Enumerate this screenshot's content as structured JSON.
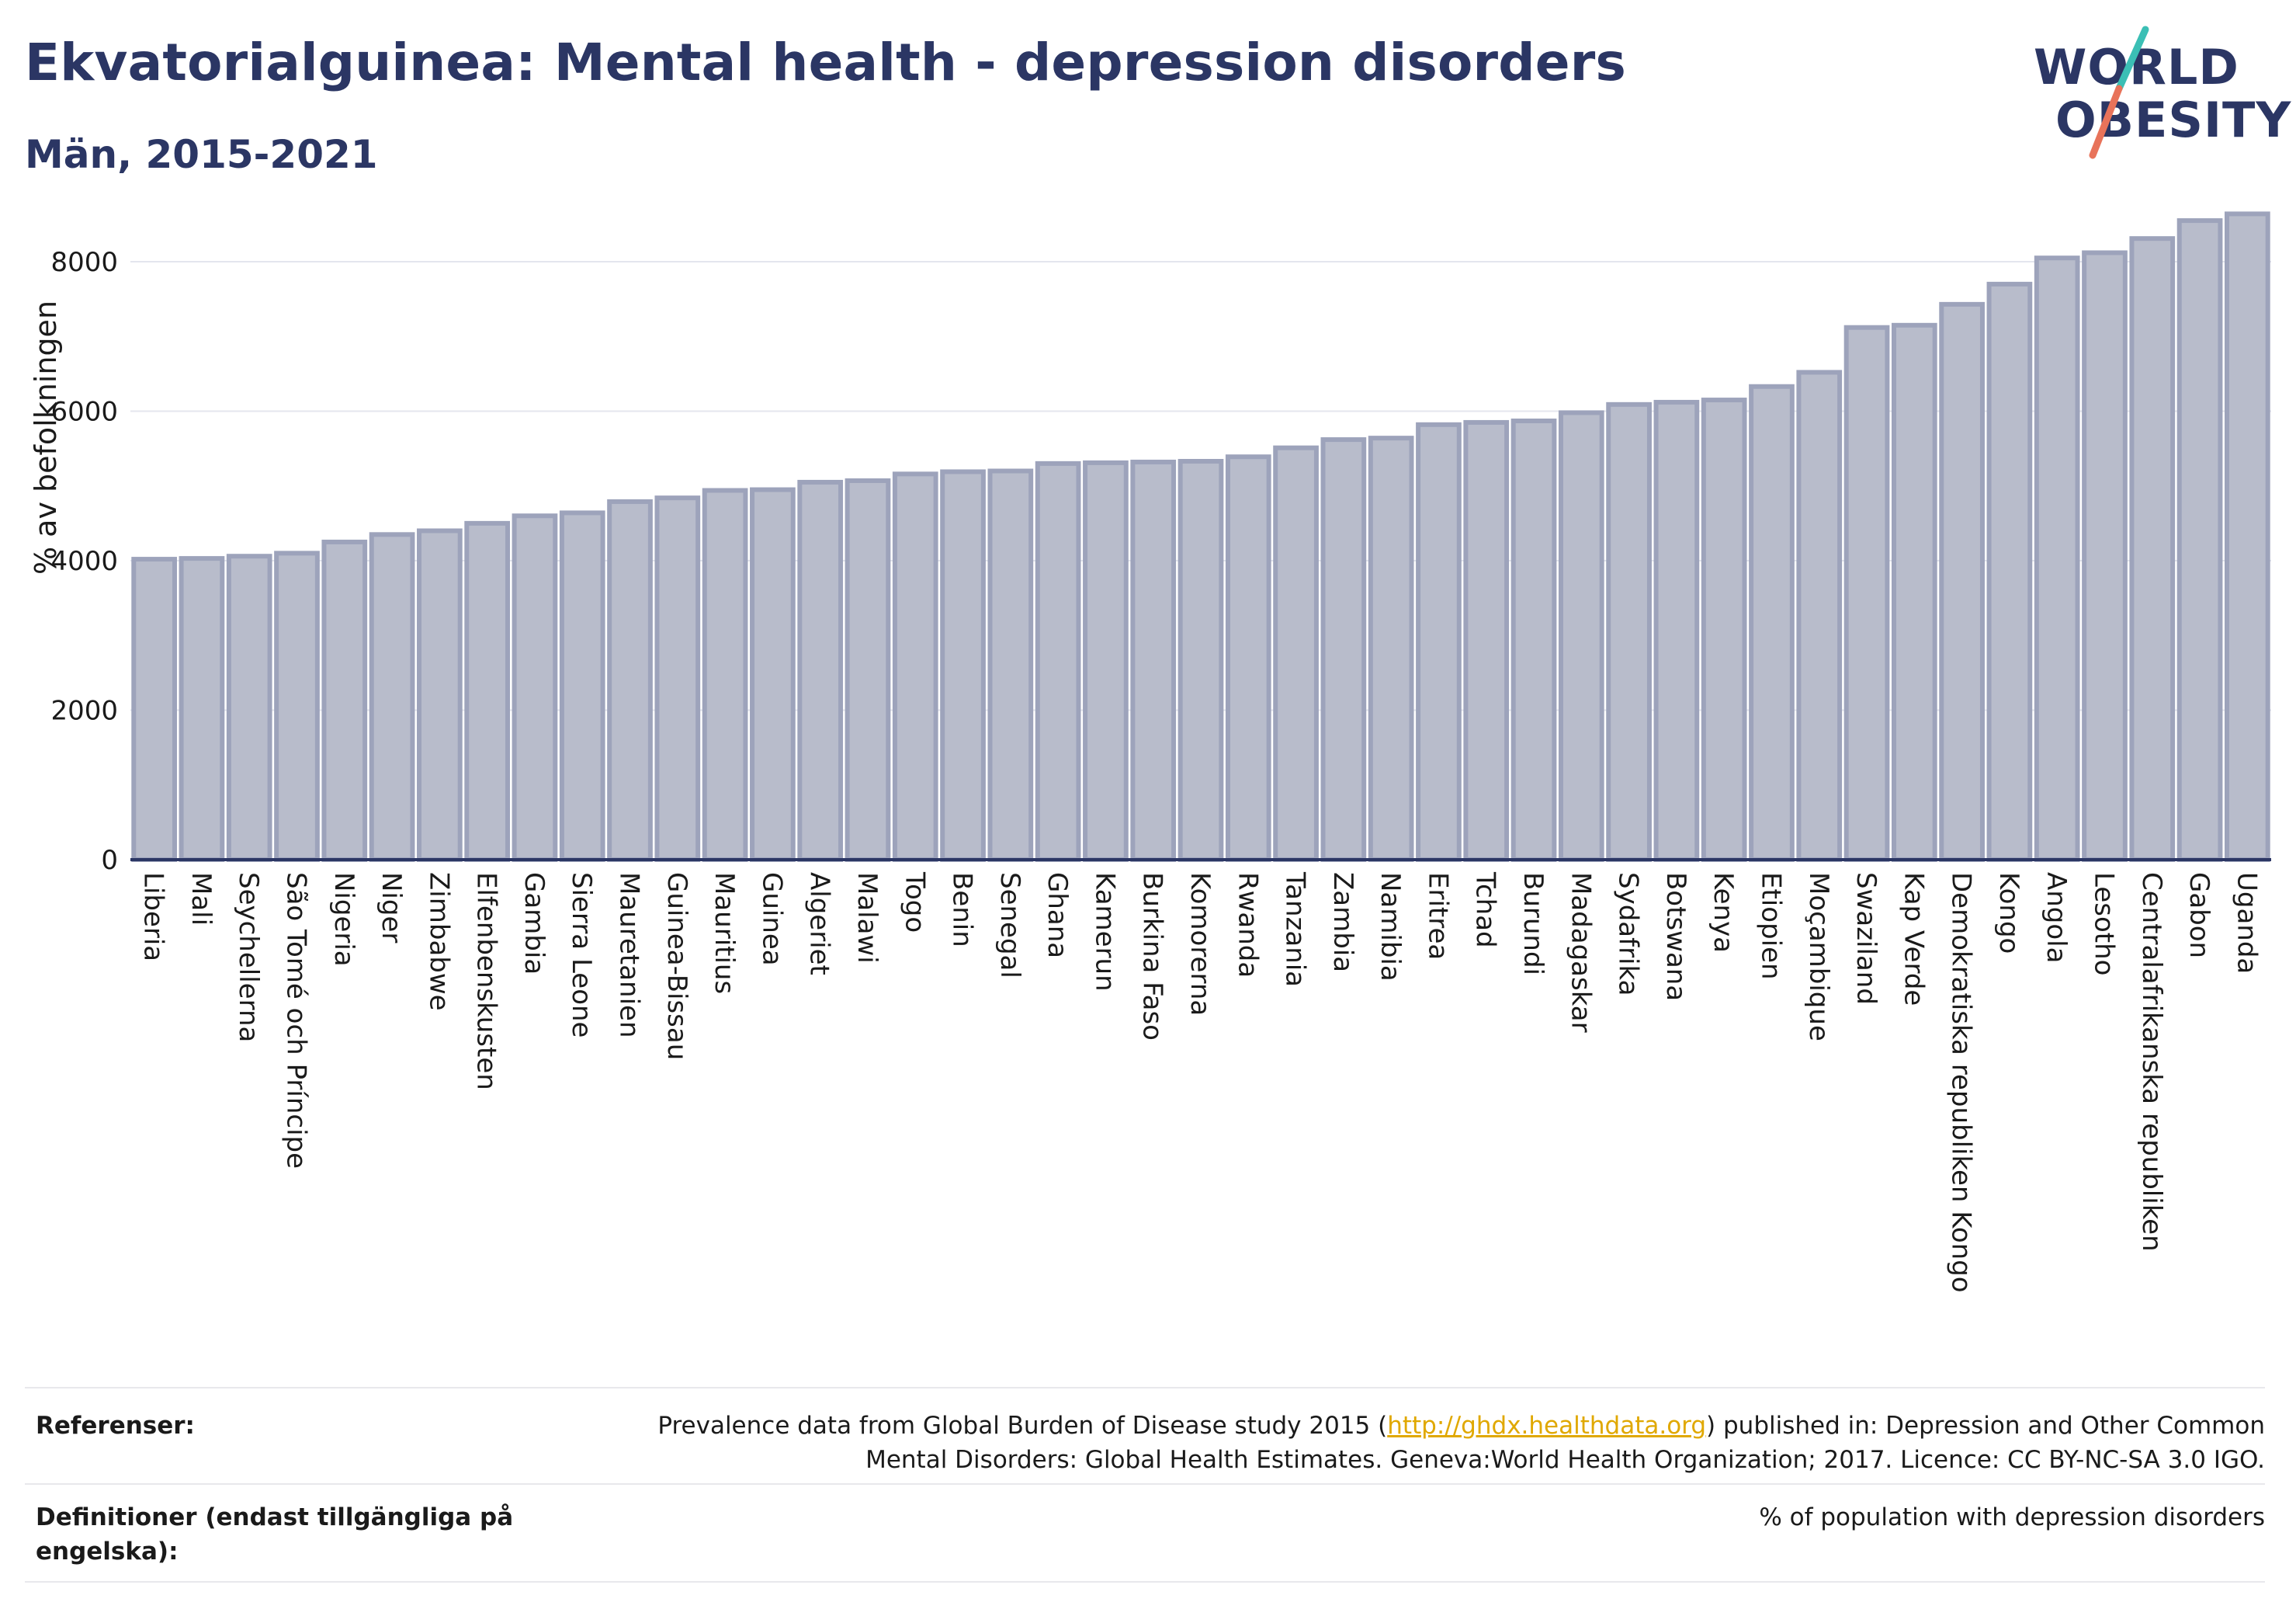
{
  "header": {
    "title": "Ekvatorialguinea: Mental health - depression disorders",
    "subtitle": "Män, 2015-2021"
  },
  "logo": {
    "line1": "WORLD",
    "line2": "OBESITY",
    "slash_colors": [
      "#3bbfb5",
      "#e8735a"
    ]
  },
  "chart_data": {
    "type": "bar",
    "title": "",
    "xlabel": "",
    "ylabel": "% av befolkningen",
    "ylim": [
      0,
      8800
    ],
    "yticks": [
      0,
      2000,
      4000,
      6000,
      8000
    ],
    "grid": true,
    "bar_color": "#b8bccb",
    "bar_edge_color": "#9da3bb",
    "categories": [
      "Liberia",
      "Mali",
      "Seychellerna",
      "São Tomé och Príncipe",
      "Nigeria",
      "Niger",
      "Zimbabwe",
      "Elfenbenskusten",
      "Gambia",
      "Sierra Leone",
      "Mauretanien",
      "Guinea-Bissau",
      "Mauritius",
      "Guinea",
      "Algeriet",
      "Malawi",
      "Togo",
      "Benin",
      "Senegal",
      "Ghana",
      "Kamerun",
      "Burkina Faso",
      "Komorerna",
      "Rwanda",
      "Tanzania",
      "Zambia",
      "Namibia",
      "Eritrea",
      "Tchad",
      "Burundi",
      "Madagaskar",
      "Sydafrika",
      "Botswana",
      "Kenya",
      "Etiopien",
      "Moçambique",
      "Swaziland",
      "Kap Verde",
      "Demokratiska republiken Kongo",
      "Kongo",
      "Angola",
      "Lesotho",
      "Centralafrikanska republiken",
      "Gabon",
      "Uganda"
    ],
    "values": [
      4020,
      4030,
      4060,
      4100,
      4250,
      4350,
      4400,
      4500,
      4600,
      4640,
      4790,
      4840,
      4940,
      4950,
      5050,
      5070,
      5160,
      5190,
      5200,
      5300,
      5310,
      5320,
      5330,
      5390,
      5510,
      5620,
      5640,
      5820,
      5850,
      5870,
      5980,
      6090,
      6120,
      6150,
      6330,
      6520,
      7120,
      7150,
      7430,
      7700,
      8050,
      8120,
      8310,
      8550,
      8640
    ]
  },
  "footer": {
    "references_label": "Referenser:",
    "references_text_1": "Prevalence data from Global Burden of Disease study 2015 (",
    "references_link": "http://ghdx.healthdata.org",
    "references_text_2": ") published in: Depression and Other Common",
    "references_text_3": "Mental Disorders: Global Health Estimates. Geneva:World Health Organization; 2017. Licence: CC BY-NC-SA 3.0 IGO.",
    "definitions_label_1": "Definitioner (endast tillgängliga på",
    "definitions_label_2": "engelska):",
    "definitions_text": "% of population with depression disorders"
  }
}
